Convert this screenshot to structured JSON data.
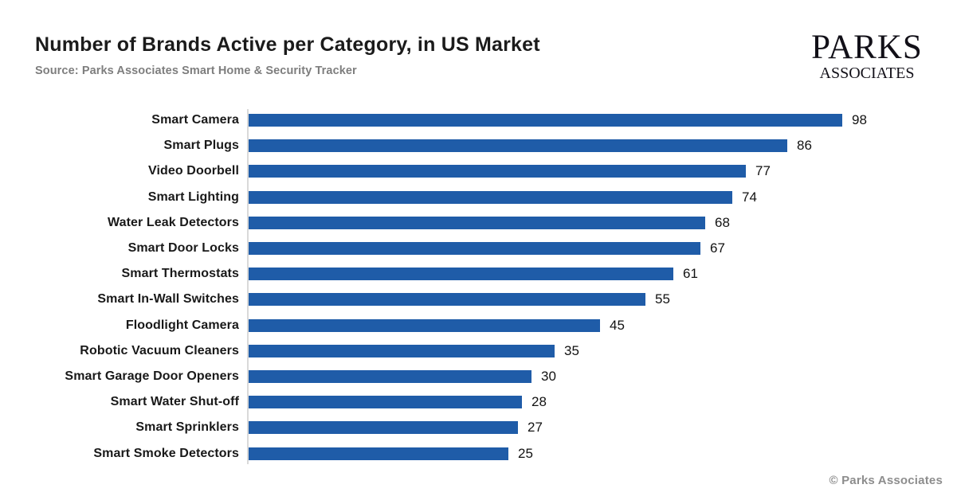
{
  "header": {
    "title": "Number of Brands Active per Category, in US Market",
    "source": "Source: Parks Associates Smart Home & Security Tracker",
    "logo": {
      "line1": "PARKS",
      "line2": "ASSOCIATES"
    }
  },
  "footer": {
    "copyright": "© Parks Associates"
  },
  "chart_data": {
    "type": "bar",
    "orientation": "horizontal",
    "title": "Number of Brands Active per Category, in US Market",
    "xlabel": "",
    "ylabel": "",
    "legend": false,
    "grid": false,
    "bar_color": "#1F5CA8",
    "axis_line_color": "#D9D9D9",
    "value_labels_shown": true,
    "categories": [
      "Smart Camera",
      "Smart Plugs",
      "Video Doorbell",
      "Smart Lighting",
      "Water Leak Detectors",
      "Smart Door Locks",
      "Smart Thermostats",
      "Smart In-Wall Switches",
      "Floodlight Camera",
      "Robotic Vacuum Cleaners",
      "Smart Garage Door Openers",
      "Smart Water Shut-off",
      "Smart Sprinklers",
      "Smart Smoke Detectors"
    ],
    "values": [
      98,
      86,
      77,
      74,
      68,
      67,
      61,
      55,
      45,
      35,
      30,
      28,
      27,
      25
    ]
  },
  "colors": {
    "title": "#1B1B1B",
    "subtitle": "#7E7E7E",
    "bar": "#1F5CA8",
    "axis": "#D9D9D9",
    "footer": "#8D8D8D"
  }
}
